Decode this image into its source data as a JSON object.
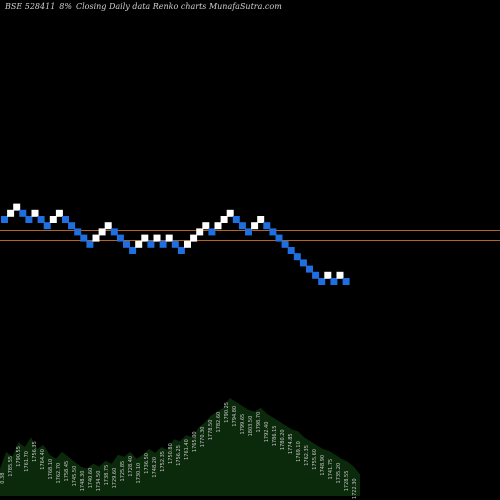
{
  "header": {
    "symbol": "BSE 528411",
    "box_size": "8%",
    "title": "Closing Daily data  Renko  charts MunafaSutra.com"
  },
  "colors": {
    "background": "#000000",
    "up_brick": "#ffffff",
    "down_brick": "#1f6fe0",
    "ref_line": "#b5651d",
    "volume_fill": "#0b2a0b",
    "volume_text": "#c8c8c8"
  },
  "chart_data": {
    "type": "renko",
    "bricks": [
      {
        "dir": "down",
        "level": 12
      },
      {
        "dir": "up",
        "level": 13
      },
      {
        "dir": "up",
        "level": 14
      },
      {
        "dir": "down",
        "level": 13
      },
      {
        "dir": "down",
        "level": 12
      },
      {
        "dir": "up",
        "level": 13
      },
      {
        "dir": "down",
        "level": 12
      },
      {
        "dir": "down",
        "level": 11
      },
      {
        "dir": "up",
        "level": 12
      },
      {
        "dir": "up",
        "level": 13
      },
      {
        "dir": "down",
        "level": 12
      },
      {
        "dir": "down",
        "level": 11
      },
      {
        "dir": "down",
        "level": 10
      },
      {
        "dir": "down",
        "level": 9
      },
      {
        "dir": "down",
        "level": 8
      },
      {
        "dir": "up",
        "level": 9
      },
      {
        "dir": "up",
        "level": 10
      },
      {
        "dir": "up",
        "level": 11
      },
      {
        "dir": "down",
        "level": 10
      },
      {
        "dir": "down",
        "level": 9
      },
      {
        "dir": "down",
        "level": 8
      },
      {
        "dir": "down",
        "level": 7
      },
      {
        "dir": "up",
        "level": 8
      },
      {
        "dir": "up",
        "level": 9
      },
      {
        "dir": "down",
        "level": 8
      },
      {
        "dir": "up",
        "level": 9
      },
      {
        "dir": "down",
        "level": 8
      },
      {
        "dir": "up",
        "level": 9
      },
      {
        "dir": "down",
        "level": 8
      },
      {
        "dir": "down",
        "level": 7
      },
      {
        "dir": "up",
        "level": 8
      },
      {
        "dir": "up",
        "level": 9
      },
      {
        "dir": "up",
        "level": 10
      },
      {
        "dir": "up",
        "level": 11
      },
      {
        "dir": "down",
        "level": 10
      },
      {
        "dir": "up",
        "level": 11
      },
      {
        "dir": "up",
        "level": 12
      },
      {
        "dir": "up",
        "level": 13
      },
      {
        "dir": "down",
        "level": 12
      },
      {
        "dir": "down",
        "level": 11
      },
      {
        "dir": "down",
        "level": 10
      },
      {
        "dir": "up",
        "level": 11
      },
      {
        "dir": "up",
        "level": 12
      },
      {
        "dir": "down",
        "level": 11
      },
      {
        "dir": "down",
        "level": 10
      },
      {
        "dir": "down",
        "level": 9
      },
      {
        "dir": "down",
        "level": 8
      },
      {
        "dir": "down",
        "level": 7
      },
      {
        "dir": "down",
        "level": 6
      },
      {
        "dir": "down",
        "level": 5
      },
      {
        "dir": "down",
        "level": 4
      },
      {
        "dir": "down",
        "level": 3
      },
      {
        "dir": "down",
        "level": 2
      },
      {
        "dir": "up",
        "level": 3
      },
      {
        "dir": "down",
        "level": 2
      },
      {
        "dir": "up",
        "level": 3
      },
      {
        "dir": "down",
        "level": 2
      }
    ],
    "reference_levels": [
      9.8,
      8.2
    ],
    "volume": [
      0.28,
      0.45,
      0.4,
      0.55,
      0.5,
      0.6,
      0.48,
      0.52,
      0.42,
      0.38,
      0.45,
      0.4,
      0.35,
      0.3,
      0.28,
      0.33,
      0.3,
      0.36,
      0.33,
      0.42,
      0.4,
      0.45,
      0.38,
      0.42,
      0.48,
      0.44,
      0.5,
      0.47,
      0.58,
      0.56,
      0.62,
      0.6,
      0.7,
      0.75,
      0.82,
      0.86,
      0.9,
      1.0,
      0.96,
      0.92,
      0.88,
      0.86,
      0.9,
      0.84,
      0.8,
      0.76,
      0.72,
      0.68,
      0.66,
      0.6,
      0.56,
      0.52,
      0.48,
      0.46,
      0.42,
      0.38,
      0.35,
      0.3,
      0.22
    ],
    "volume_labels": [
      "0.38",
      "1785.55",
      "1790.55",
      "1761.70",
      "1756.35",
      "1764.40",
      "1768.10",
      "1762.70",
      "1758.45",
      "1745.50",
      "1748.30",
      "1740.60",
      "1734.50",
      "1738.75",
      "1729.60",
      "1725.85",
      "1728.40",
      "1730.10",
      "1736.50",
      "1748.20",
      "1752.35",
      "1750.80",
      "1756.25",
      "1761.40",
      "1765.00",
      "1770.30",
      "1778.50",
      "1782.60",
      "1790.25",
      "1794.80",
      "1799.65",
      "1803.50",
      "1798.70",
      "1792.40",
      "1786.15",
      "1780.20",
      "1774.85",
      "1769.10",
      "1762.35",
      "1755.60",
      "1748.90",
      "1741.75",
      "1735.20",
      "1728.55",
      "1722.30"
    ]
  }
}
